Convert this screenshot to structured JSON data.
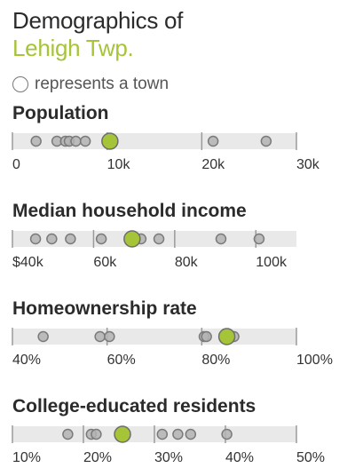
{
  "header": {
    "title_line1": "Demographics of",
    "title_line2": "Lehigh Twp.",
    "legend_text": "represents a town"
  },
  "colors": {
    "highlight": "#a6c437",
    "dot_fill": "#b3b3b3",
    "dot_stroke": "#7a7a7a",
    "band": "#e9e9e9",
    "tick": "#9a9a9a"
  },
  "chart_data": [
    {
      "type": "scatter",
      "title": "Population",
      "domain": [
        0,
        30000
      ],
      "ticks": [
        {
          "value": 0,
          "label": "0"
        },
        {
          "value": 10000,
          "label": "10k"
        },
        {
          "value": 20000,
          "label": "20k"
        },
        {
          "value": 30000,
          "label": "30k"
        }
      ],
      "highlight": 10300,
      "towns": [
        2500,
        4700,
        5600,
        6000,
        6700,
        7700,
        21200,
        26800
      ]
    },
    {
      "type": "scatter",
      "title": "Median household income",
      "domain": [
        40000,
        110000
      ],
      "ticks": [
        {
          "value": 40000,
          "label": "$40k"
        },
        {
          "value": 60000,
          "label": "60k"
        },
        {
          "value": 80000,
          "label": "80k"
        },
        {
          "value": 100000,
          "label": "100k"
        }
      ],
      "highlight": 69500,
      "towns": [
        45700,
        49700,
        54300,
        61900,
        71700,
        76100,
        91400,
        100800
      ]
    },
    {
      "type": "scatter",
      "title": "Homeownership rate",
      "domain": [
        40,
        100
      ],
      "ticks": [
        {
          "value": 40,
          "label": "40%"
        },
        {
          "value": 60,
          "label": "60%"
        },
        {
          "value": 80,
          "label": "80%"
        },
        {
          "value": 100,
          "label": "100%"
        }
      ],
      "highlight": 85.3,
      "towns": [
        46.5,
        58.5,
        60.5,
        80.5,
        81,
        86.8
      ]
    },
    {
      "type": "scatter",
      "title": "College-educated residents",
      "domain": [
        10,
        50
      ],
      "ticks": [
        {
          "value": 10,
          "label": "10%"
        },
        {
          "value": 20,
          "label": "20%"
        },
        {
          "value": 30,
          "label": "30%"
        },
        {
          "value": 40,
          "label": "40%"
        },
        {
          "value": 50,
          "label": "50%"
        }
      ],
      "highlight": 25.5,
      "towns": [
        17.8,
        21.1,
        21.8,
        31.1,
        33.3,
        35.1,
        40.2
      ]
    }
  ]
}
